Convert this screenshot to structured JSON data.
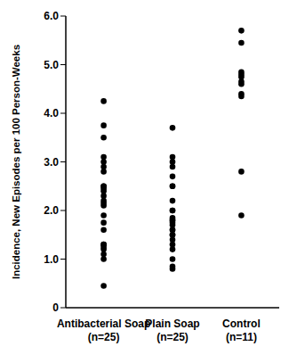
{
  "chart_data": {
    "type": "scatter",
    "y_label": "Incidence, New Episodes per 100 Person-Weeks",
    "categories": [
      "Antibacterial Soap (n=25)",
      "Plain Soap (n=25)",
      "Control (n=11)"
    ],
    "values": [
      [
        4.25,
        3.75,
        3.5,
        3.1,
        3.0,
        2.9,
        2.8,
        2.5,
        2.5,
        2.45,
        2.4,
        2.3,
        2.2,
        2.15,
        2.1,
        1.9,
        1.75,
        1.6,
        1.3,
        1.3,
        1.25,
        1.2,
        1.1,
        1.0,
        0.45
      ],
      [
        3.7,
        3.1,
        3.0,
        2.9,
        2.7,
        2.5,
        2.5,
        2.2,
        2.0,
        2.0,
        1.85,
        1.8,
        1.8,
        1.75,
        1.7,
        1.6,
        1.6,
        1.5,
        1.5,
        1.4,
        1.3,
        1.2,
        1.0,
        0.85,
        0.8
      ],
      [
        5.7,
        5.45,
        4.85,
        4.8,
        4.75,
        4.65,
        4.6,
        4.4,
        4.35,
        2.8,
        1.9
      ]
    ],
    "color": "#000000",
    "marker": "circle",
    "ylim": [
      0,
      6
    ],
    "yticks": [
      0,
      {
        "value": 1,
        "label": "1.0"
      },
      {
        "value": 2,
        "label": "2.0"
      },
      {
        "value": 3,
        "label": "3.0"
      },
      {
        "value": 4,
        "label": "4.0"
      },
      {
        "value": 5,
        "label": "5.0"
      },
      {
        "value": 6,
        "label": "6.0"
      }
    ],
    "grid": false
  }
}
